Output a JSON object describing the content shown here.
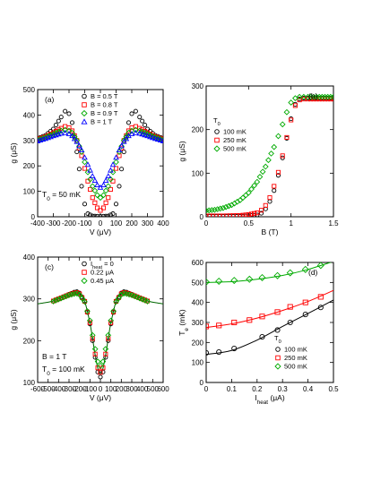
{
  "chart_data": [
    {
      "panel": "(a)",
      "type": "scatter",
      "xlabel": "V (μV)",
      "ylabel": "g (μS)",
      "xlim": [
        -400,
        400
      ],
      "ylim": [
        0,
        500
      ],
      "xticks": [
        -400,
        -300,
        -200,
        -100,
        0,
        100,
        200,
        300,
        400
      ],
      "yticks": [
        0,
        100,
        200,
        300,
        400,
        500
      ],
      "annotation": "T₀ = 50 mK",
      "legend_position": "top-left",
      "series": [
        {
          "name": "B = 0.5 T",
          "marker": "circle",
          "color": "#000000",
          "x": [
            -400,
            -350,
            -300,
            -250,
            -225,
            -200,
            -180,
            -150,
            -120,
            -100,
            -80,
            -50,
            -20,
            0,
            20,
            50,
            80,
            100,
            120,
            150,
            180,
            200,
            225,
            250,
            300,
            350,
            400
          ],
          "y": [
            308,
            320,
            345,
            392,
            415,
            405,
            370,
            255,
            120,
            50,
            12,
            3,
            2,
            2,
            2,
            3,
            12,
            50,
            120,
            255,
            370,
            405,
            415,
            392,
            345,
            320,
            308
          ]
        },
        {
          "name": "B = 0.8 T",
          "marker": "square",
          "color": "#ff0000",
          "x": [
            -400,
            -350,
            -300,
            -250,
            -225,
            -200,
            -180,
            -150,
            -120,
            -100,
            -80,
            -50,
            -20,
            0,
            20,
            50,
            80,
            100,
            120,
            150,
            180,
            200,
            225,
            250,
            300,
            350,
            400
          ],
          "y": [
            305,
            315,
            330,
            348,
            355,
            350,
            338,
            300,
            240,
            190,
            140,
            75,
            35,
            25,
            35,
            75,
            140,
            190,
            240,
            300,
            338,
            350,
            355,
            348,
            330,
            315,
            305
          ]
        },
        {
          "name": "B = 0.9 T",
          "marker": "diamond",
          "color": "#00aa00",
          "x": [
            -400,
            -350,
            -300,
            -250,
            -225,
            -200,
            -180,
            -150,
            -120,
            -100,
            -80,
            -50,
            -20,
            0,
            20,
            50,
            80,
            100,
            120,
            150,
            180,
            200,
            225,
            250,
            300,
            350,
            400
          ],
          "y": [
            302,
            312,
            325,
            338,
            342,
            338,
            330,
            300,
            255,
            215,
            175,
            120,
            85,
            75,
            85,
            120,
            175,
            215,
            255,
            300,
            330,
            338,
            342,
            338,
            325,
            312,
            302
          ]
        },
        {
          "name": "B = 1 T",
          "marker": "triangle",
          "color": "#0000ff",
          "x": [
            -400,
            -350,
            -300,
            -250,
            -225,
            -200,
            -180,
            -150,
            -120,
            -100,
            -80,
            -50,
            -20,
            0,
            20,
            50,
            80,
            100,
            120,
            150,
            180,
            200,
            225,
            250,
            300,
            350,
            400
          ],
          "y": [
            298,
            307,
            318,
            328,
            330,
            326,
            318,
            295,
            262,
            233,
            205,
            160,
            125,
            115,
            125,
            160,
            205,
            233,
            262,
            295,
            318,
            326,
            330,
            328,
            318,
            307,
            298
          ]
        }
      ]
    },
    {
      "panel": "(b)",
      "type": "scatter",
      "xlabel": "B (T)",
      "ylabel": "g (μS)",
      "xlim": [
        0,
        1.5
      ],
      "ylim": [
        0,
        300
      ],
      "xticks": [
        0,
        0.5,
        1,
        1.5
      ],
      "yticks": [
        0,
        100,
        200,
        300
      ],
      "legend_title": "T₀",
      "legend_position": "left",
      "series": [
        {
          "name": "100 mK",
          "marker": "circle",
          "color": "#000000",
          "x": [
            0,
            0.2,
            0.4,
            0.5,
            0.6,
            0.65,
            0.7,
            0.75,
            0.8,
            0.85,
            0.9,
            0.95,
            1.0,
            1.05,
            1.1,
            1.15,
            1.2,
            1.3,
            1.4,
            1.5
          ],
          "y": [
            1,
            1,
            1,
            2,
            4,
            8,
            18,
            35,
            60,
            95,
            135,
            180,
            225,
            258,
            270,
            272,
            272,
            272,
            272,
            272
          ]
        },
        {
          "name": "250 mK",
          "marker": "square",
          "color": "#ff0000",
          "x": [
            0,
            0.2,
            0.4,
            0.5,
            0.6,
            0.65,
            0.7,
            0.75,
            0.8,
            0.85,
            0.9,
            0.95,
            1.0,
            1.05,
            1.1,
            1.15,
            1.2,
            1.3,
            1.4,
            1.5
          ],
          "y": [
            2,
            2,
            3,
            5,
            9,
            15,
            26,
            44,
            70,
            102,
            140,
            182,
            222,
            255,
            268,
            270,
            270,
            270,
            270,
            270
          ]
        },
        {
          "name": "500 mK",
          "marker": "diamond",
          "color": "#00aa00",
          "x": [
            0,
            0.1,
            0.2,
            0.3,
            0.4,
            0.5,
            0.6,
            0.7,
            0.8,
            0.85,
            0.9,
            0.95,
            1.0,
            1.05,
            1.1,
            1.15,
            1.2,
            1.3,
            1.4,
            1.5
          ],
          "y": [
            14,
            16,
            20,
            27,
            38,
            55,
            80,
            115,
            160,
            185,
            212,
            240,
            262,
            272,
            275,
            275,
            275,
            275,
            275,
            275
          ]
        }
      ]
    },
    {
      "panel": "(c)",
      "type": "scatter",
      "xlabel": "V (μV)",
      "ylabel": "g (μS)",
      "xlim": [
        -600,
        600
      ],
      "ylim": [
        100,
        400
      ],
      "xticks": [
        -600,
        -500,
        -400,
        -300,
        -200,
        -100,
        0,
        100,
        200,
        300,
        400,
        500,
        600
      ],
      "yticks": [
        100,
        200,
        300,
        400
      ],
      "annotation": "B = 1 T",
      "annotation2": "T₀ = 100 mK",
      "legend_position": "top-left",
      "series": [
        {
          "name": "I_heat = 0",
          "marker": "circle",
          "color": "#000000",
          "x": [
            -450,
            -400,
            -350,
            -300,
            -250,
            -225,
            -200,
            -150,
            -100,
            -75,
            -50,
            -25,
            0,
            25,
            50,
            75,
            100,
            150,
            200,
            225,
            250,
            300,
            350,
            400,
            450
          ],
          "y": [
            295,
            300,
            305,
            311,
            316,
            317,
            314,
            295,
            240,
            200,
            160,
            125,
            113,
            125,
            160,
            200,
            240,
            295,
            314,
            317,
            316,
            311,
            305,
            300,
            295
          ]
        },
        {
          "name": "0.22 μA",
          "marker": "square",
          "color": "#ff0000",
          "x": [
            -450,
            -400,
            -350,
            -300,
            -250,
            -225,
            -200,
            -150,
            -100,
            -75,
            -50,
            -25,
            0,
            25,
            50,
            75,
            100,
            150,
            200,
            225,
            250,
            300,
            350,
            400,
            450
          ],
          "y": [
            295,
            300,
            305,
            310,
            314,
            315,
            312,
            294,
            243,
            205,
            168,
            135,
            124,
            135,
            168,
            205,
            243,
            294,
            312,
            315,
            314,
            310,
            305,
            300,
            295
          ]
        },
        {
          "name": "0.45 μA",
          "marker": "diamond",
          "color": "#00aa00",
          "x": [
            -450,
            -400,
            -350,
            -300,
            -250,
            -225,
            -200,
            -150,
            -100,
            -75,
            -50,
            -25,
            0,
            25,
            50,
            75,
            100,
            150,
            200,
            225,
            250,
            300,
            350,
            400,
            450
          ],
          "y": [
            294,
            299,
            304,
            309,
            312,
            313,
            310,
            293,
            248,
            213,
            180,
            150,
            140,
            150,
            180,
            213,
            248,
            293,
            310,
            313,
            312,
            309,
            304,
            299,
            294
          ]
        }
      ],
      "fit_curve": {
        "x": [
          -600,
          -550,
          -500,
          -450,
          -400,
          -350,
          -300,
          -250,
          -225,
          -200,
          -150,
          -100,
          -75,
          -50,
          -25,
          0,
          25,
          50,
          75,
          100,
          150,
          200,
          225,
          250,
          300,
          350,
          400,
          450,
          500,
          550,
          600
        ],
        "y": [
          288,
          290,
          292,
          295,
          300,
          305,
          310,
          315,
          316,
          313,
          294,
          242,
          205,
          166,
          134,
          122,
          134,
          166,
          205,
          242,
          294,
          313,
          316,
          315,
          310,
          305,
          300,
          295,
          292,
          290,
          288
        ]
      }
    },
    {
      "panel": "(d)",
      "type": "scatter",
      "xlabel": "I_heat (μA)",
      "ylabel": "T_e (mK)",
      "xlim": [
        0,
        0.5
      ],
      "ylim": [
        0,
        600
      ],
      "xticks": [
        0,
        0.1,
        0.2,
        0.3,
        0.4,
        0.5
      ],
      "yticks": [
        0,
        100,
        200,
        300,
        400,
        500,
        600
      ],
      "legend_title": "T₀",
      "legend_position": "bottom-right",
      "series": [
        {
          "name": "100 mK",
          "marker": "circle",
          "color": "#000000",
          "x": [
            0,
            0.05,
            0.11,
            0.22,
            0.28,
            0.33,
            0.39,
            0.45
          ],
          "y": [
            148,
            152,
            170,
            228,
            262,
            300,
            340,
            375
          ],
          "fit_x": [
            0,
            0.1,
            0.2,
            0.3,
            0.4,
            0.5
          ],
          "fit_y": [
            140,
            160,
            212,
            280,
            345,
            412
          ]
        },
        {
          "name": "250 mK",
          "marker": "square",
          "color": "#ff0000",
          "x": [
            0,
            0.05,
            0.11,
            0.17,
            0.22,
            0.28,
            0.33,
            0.39,
            0.45
          ],
          "y": [
            280,
            285,
            300,
            312,
            330,
            352,
            378,
            400,
            428
          ],
          "fit_x": [
            0,
            0.1,
            0.2,
            0.3,
            0.4,
            0.5
          ],
          "fit_y": [
            275,
            293,
            322,
            360,
            405,
            460
          ]
        },
        {
          "name": "500 mK",
          "marker": "diamond",
          "color": "#00aa00",
          "x": [
            0,
            0.05,
            0.11,
            0.17,
            0.22,
            0.28,
            0.33,
            0.39,
            0.45
          ],
          "y": [
            502,
            506,
            510,
            516,
            524,
            534,
            548,
            565,
            585
          ],
          "fit_x": [
            0,
            0.1,
            0.2,
            0.3,
            0.4,
            0.5
          ],
          "fit_y": [
            500,
            504,
            516,
            535,
            565,
            605
          ]
        }
      ]
    }
  ]
}
